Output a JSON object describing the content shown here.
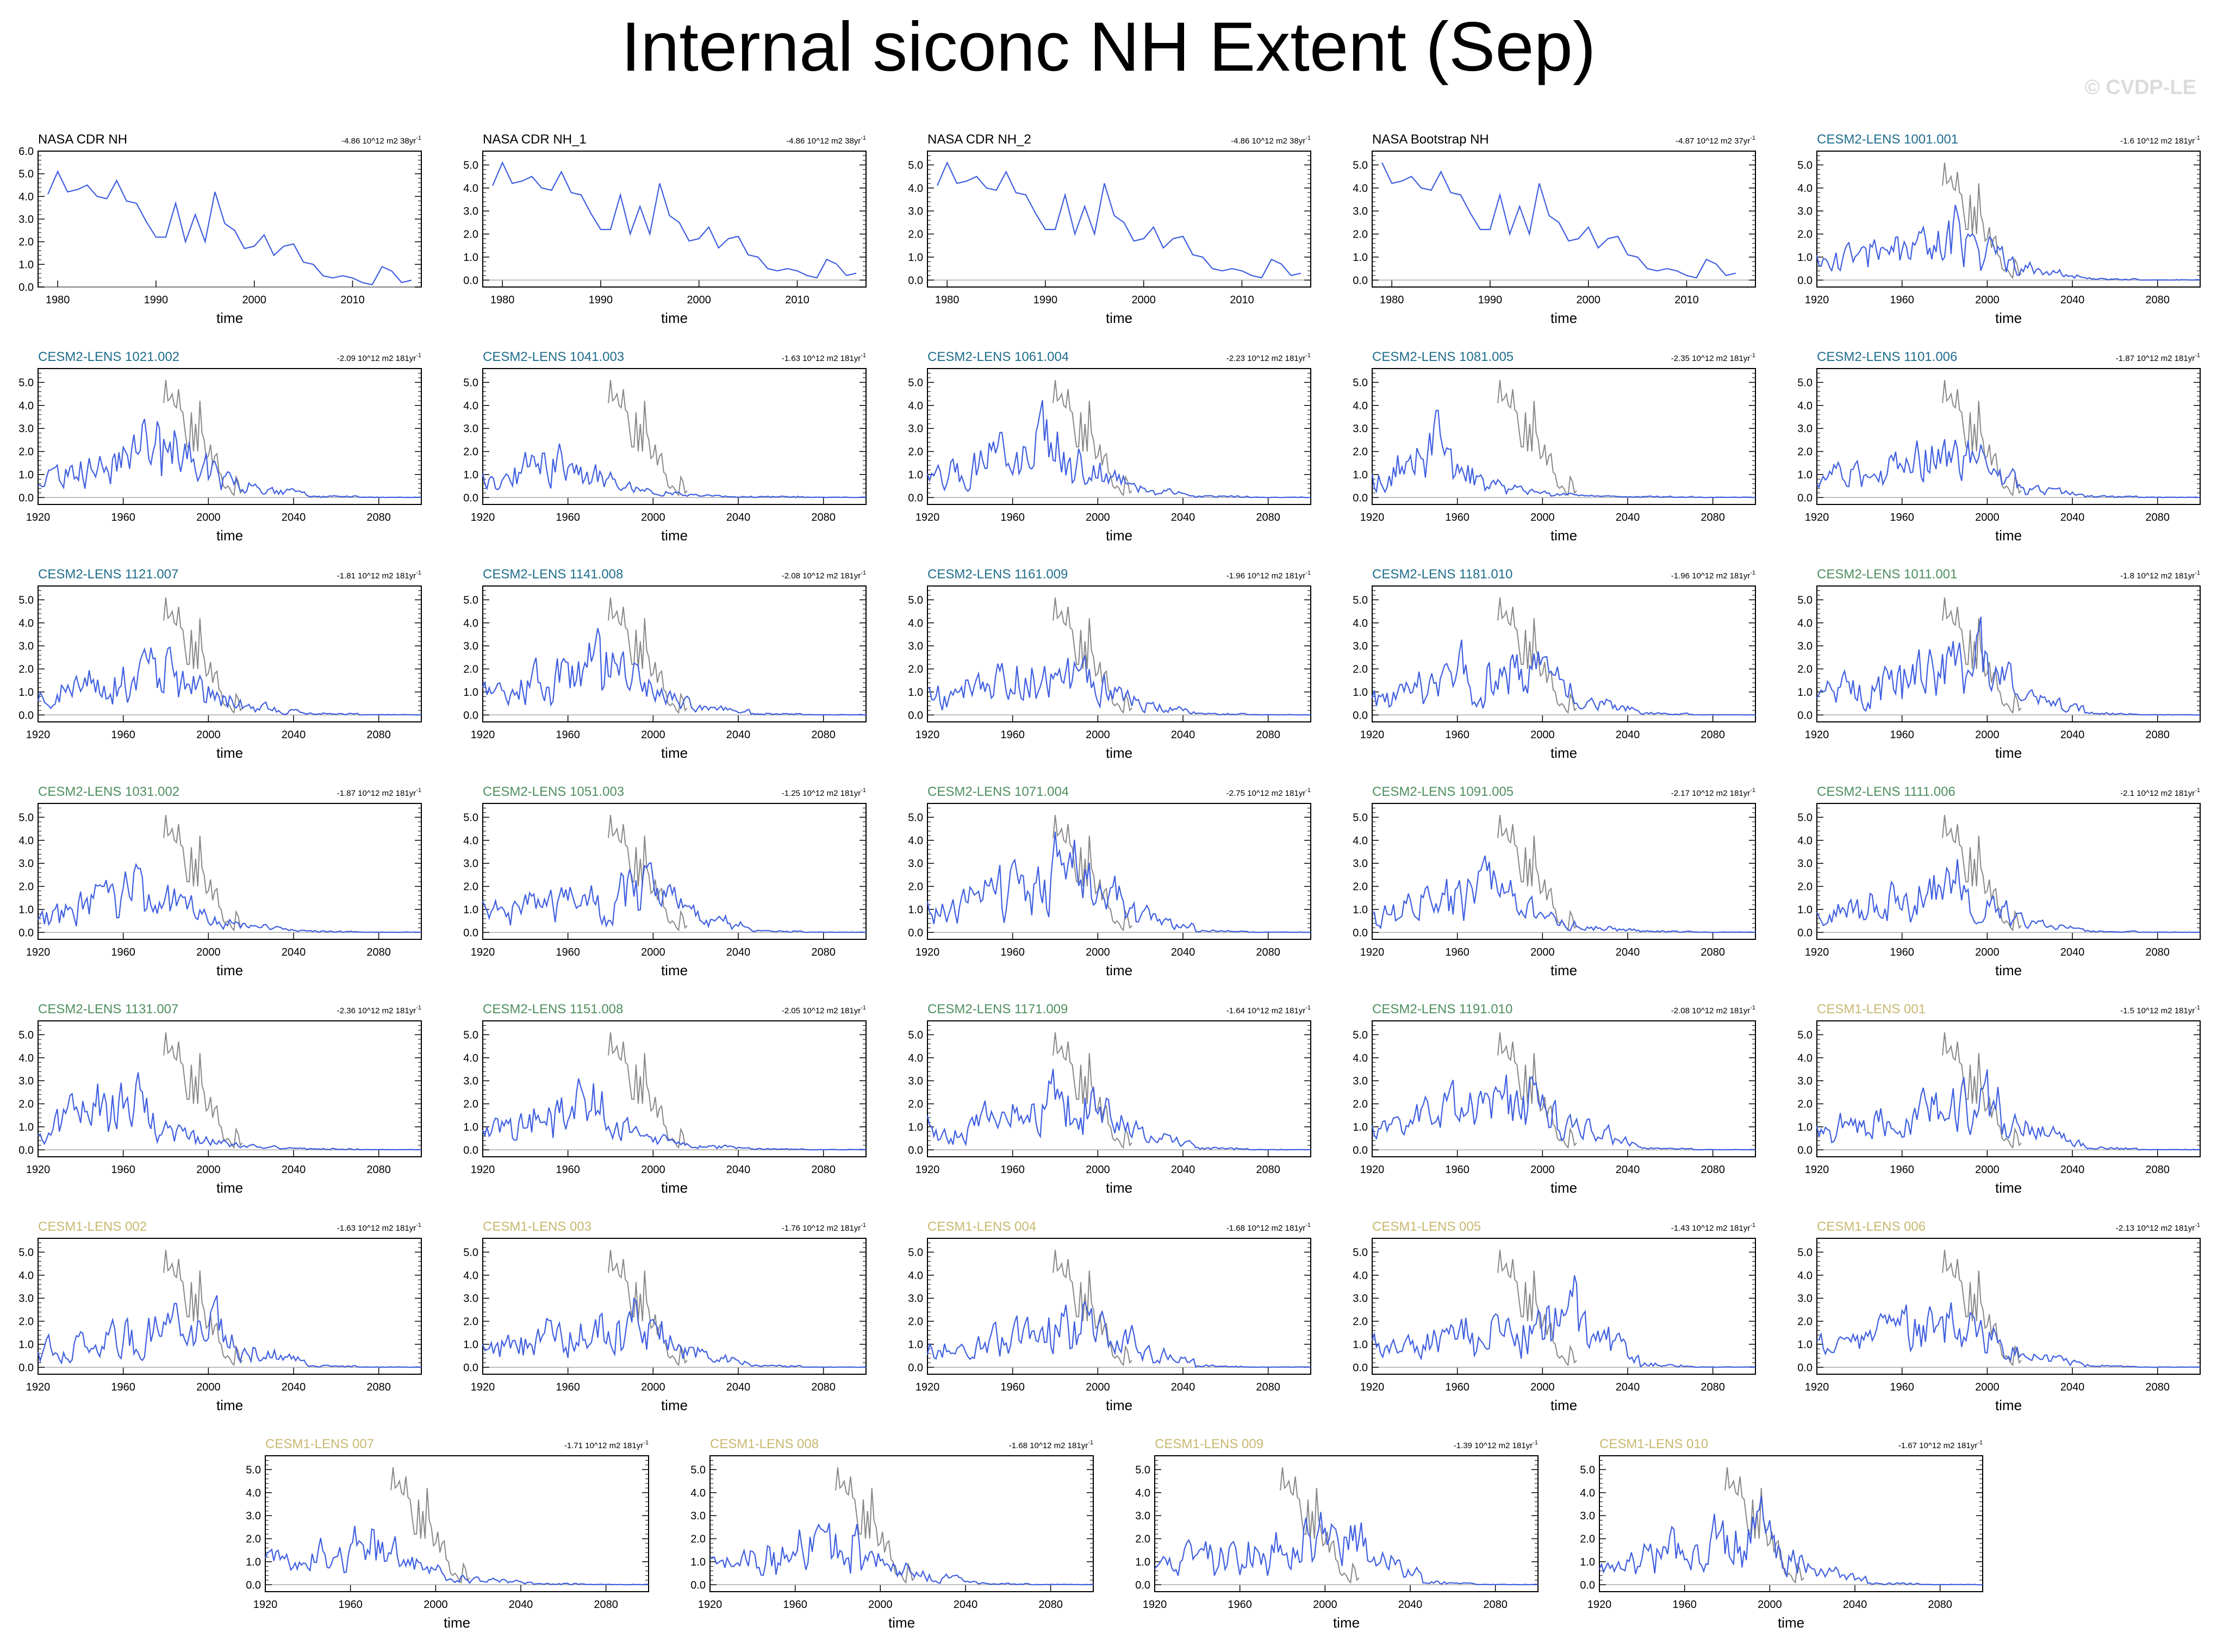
{
  "title": "Internal siconc NH Extent (Sep)",
  "watermark": "© CVDP-LE",
  "colors": {
    "series_line": "#3f5fe0",
    "obs_overlay_line": "#888888",
    "zero_line": "#aaaaaa",
    "frame": "#000000",
    "label_obs": "#000000",
    "label_cesm2_blue": "#1f6d8c",
    "label_cesm2_green": "#4f8f5f",
    "label_cesm1": "#c8b870"
  },
  "chart_data": [
    {
      "type": "line",
      "subtitle": "NASA CDR NH",
      "label_color": "#000000",
      "trend": "-4.86 10^12 m2 38yr",
      "trend_sup": "-1",
      "xlabel": "time",
      "xlim": [
        1978,
        2017
      ],
      "xticks": [
        1980,
        1990,
        2000,
        2010
      ],
      "ylim": [
        0,
        6
      ],
      "yticks": [
        "0.0",
        "1.0",
        "2.0",
        "3.0",
        "4.0",
        "5.0",
        "6.0"
      ],
      "overlay_obs": false,
      "x_start": 1979,
      "values": [
        4.1,
        5.1,
        4.2,
        4.3,
        4.5,
        4.0,
        3.9,
        4.7,
        3.8,
        3.7,
        2.9,
        2.2,
        2.2,
        3.7,
        2.0,
        3.2,
        2.0,
        4.2,
        2.8,
        2.5,
        1.7,
        1.8,
        2.3,
        1.4,
        1.8,
        1.9,
        1.1,
        1.0,
        0.5,
        0.4,
        0.5,
        0.4,
        0.2,
        0.1,
        0.9,
        0.7,
        0.2,
        0.3
      ]
    },
    {
      "type": "line",
      "subtitle": "NASA CDR NH_1",
      "label_color": "#000000",
      "trend": "-4.86 10^12 m2 38yr",
      "trend_sup": "-1",
      "xlabel": "time",
      "xlim": [
        1978,
        2017
      ],
      "xticks": [
        1980,
        1990,
        2000,
        2010
      ],
      "ylim": [
        -0.3,
        5.6
      ],
      "yticks": [
        "0.0",
        "1.0",
        "2.0",
        "3.0",
        "4.0",
        "5.0"
      ],
      "overlay_obs": false,
      "x_start": 1979,
      "values": [
        4.1,
        5.1,
        4.2,
        4.3,
        4.5,
        4.0,
        3.9,
        4.7,
        3.8,
        3.7,
        2.9,
        2.2,
        2.2,
        3.7,
        2.0,
        3.2,
        2.0,
        4.2,
        2.8,
        2.5,
        1.7,
        1.8,
        2.3,
        1.4,
        1.8,
        1.9,
        1.1,
        1.0,
        0.5,
        0.4,
        0.5,
        0.4,
        0.2,
        0.1,
        0.9,
        0.7,
        0.2,
        0.3
      ]
    },
    {
      "type": "line",
      "subtitle": "NASA CDR NH_2",
      "label_color": "#000000",
      "trend": "-4.86 10^12 m2 38yr",
      "trend_sup": "-1",
      "xlabel": "time",
      "xlim": [
        1978,
        2017
      ],
      "xticks": [
        1980,
        1990,
        2000,
        2010
      ],
      "ylim": [
        -0.3,
        5.6
      ],
      "yticks": [
        "0.0",
        "1.0",
        "2.0",
        "3.0",
        "4.0",
        "5.0"
      ],
      "overlay_obs": false,
      "x_start": 1979,
      "values": [
        4.1,
        5.1,
        4.2,
        4.3,
        4.5,
        4.0,
        3.9,
        4.7,
        3.8,
        3.7,
        2.9,
        2.2,
        2.2,
        3.7,
        2.0,
        3.2,
        2.0,
        4.2,
        2.8,
        2.5,
        1.7,
        1.8,
        2.3,
        1.4,
        1.8,
        1.9,
        1.1,
        1.0,
        0.5,
        0.4,
        0.5,
        0.4,
        0.2,
        0.1,
        0.9,
        0.7,
        0.2,
        0.3
      ]
    },
    {
      "type": "line",
      "subtitle": "NASA Bootstrap NH",
      "label_color": "#000000",
      "trend": "-4.87 10^12 m2 37yr",
      "trend_sup": "-1",
      "xlabel": "time",
      "xlim": [
        1978,
        2017
      ],
      "xticks": [
        1980,
        1990,
        2000,
        2010
      ],
      "ylim": [
        -0.3,
        5.6
      ],
      "yticks": [
        "0.0",
        "1.0",
        "2.0",
        "3.0",
        "4.0",
        "5.0"
      ],
      "overlay_obs": false,
      "x_start": 1979,
      "values": [
        5.1,
        4.2,
        4.3,
        4.5,
        4.0,
        3.9,
        4.7,
        3.8,
        3.7,
        2.9,
        2.2,
        2.2,
        3.7,
        2.0,
        3.2,
        2.0,
        4.2,
        2.8,
        2.5,
        1.7,
        1.8,
        2.3,
        1.4,
        1.8,
        1.9,
        1.1,
        1.0,
        0.5,
        0.4,
        0.5,
        0.4,
        0.2,
        0.1,
        0.9,
        0.7,
        0.2,
        0.3
      ]
    },
    {
      "type": "line",
      "subtitle": "CESM2-LENS 1001.001",
      "label_color": "#1f6d8c",
      "trend": "-1.6 10^12 m2 181yr",
      "trend_sup": "-1",
      "seed": 11,
      "peak": 1990,
      "amp": 2.6
    },
    {
      "type": "line",
      "subtitle": "CESM2-LENS 1021.002",
      "label_color": "#1f6d8c",
      "trend": "-2.09 10^12 m2 181yr",
      "trend_sup": "-1",
      "seed": 12,
      "peak": 1985,
      "amp": 3.0
    },
    {
      "type": "line",
      "subtitle": "CESM2-LENS 1041.003",
      "label_color": "#1f6d8c",
      "trend": "-1.63 10^12 m2 181yr",
      "trend_sup": "-1",
      "seed": 13,
      "peak": 1960,
      "amp": 2.0
    },
    {
      "type": "line",
      "subtitle": "CESM2-LENS 1061.004",
      "label_color": "#1f6d8c",
      "trend": "-2.23 10^12 m2 181yr",
      "trend_sup": "-1",
      "seed": 14,
      "peak": 1980,
      "amp": 3.2
    },
    {
      "type": "line",
      "subtitle": "CESM2-LENS 1081.005",
      "label_color": "#1f6d8c",
      "trend": "-2.35 10^12 m2 181yr",
      "trend_sup": "-1",
      "seed": 15,
      "peak": 1950,
      "amp": 2.6
    },
    {
      "type": "line",
      "subtitle": "CESM2-LENS 1101.006",
      "label_color": "#1f6d8c",
      "trend": "-1.87 10^12 m2 181yr",
      "trend_sup": "-1",
      "seed": 16,
      "peak": 1985,
      "amp": 2.6
    },
    {
      "type": "line",
      "subtitle": "CESM2-LENS 1121.007",
      "label_color": "#1f6d8c",
      "trend": "-1.81 10^12 m2 181yr",
      "trend_sup": "-1",
      "seed": 17,
      "peak": 1985,
      "amp": 2.6
    },
    {
      "type": "line",
      "subtitle": "CESM2-LENS 1141.008",
      "label_color": "#1f6d8c",
      "trend": "-2.08 10^12 m2 181yr",
      "trend_sup": "-1",
      "seed": 18,
      "peak": 1980,
      "amp": 3.0
    },
    {
      "type": "line",
      "subtitle": "CESM2-LENS 1161.009",
      "label_color": "#1f6d8c",
      "trend": "-1.96 10^12 m2 181yr",
      "trend_sup": "-1",
      "seed": 19,
      "peak": 1990,
      "amp": 2.6
    },
    {
      "type": "line",
      "subtitle": "CESM2-LENS 1181.010",
      "label_color": "#1f6d8c",
      "trend": "-1.96 10^12 m2 181yr",
      "trend_sup": "-1",
      "seed": 20,
      "peak": 1995,
      "amp": 2.6
    },
    {
      "type": "line",
      "subtitle": "CESM2-LENS 1011.001",
      "label_color": "#4f8f5f",
      "trend": "-1.8 10^12 m2 181yr",
      "trend_sup": "-1",
      "seed": 21,
      "peak": 1995,
      "amp": 3.0
    },
    {
      "type": "line",
      "subtitle": "CESM2-LENS 1031.002",
      "label_color": "#4f8f5f",
      "trend": "-1.87 10^12 m2 181yr",
      "trend_sup": "-1",
      "seed": 22,
      "peak": 1975,
      "amp": 2.5
    },
    {
      "type": "line",
      "subtitle": "CESM2-LENS 1051.003",
      "label_color": "#4f8f5f",
      "trend": "-1.25 10^12 m2 181yr",
      "trend_sup": "-1",
      "seed": 23,
      "peak": 2000,
      "amp": 2.6
    },
    {
      "type": "line",
      "subtitle": "CESM2-LENS 1071.004",
      "label_color": "#4f8f5f",
      "trend": "-2.75 10^12 m2 181yr",
      "trend_sup": "-1",
      "seed": 24,
      "peak": 1990,
      "amp": 3.4
    },
    {
      "type": "line",
      "subtitle": "CESM2-LENS 1091.005",
      "label_color": "#4f8f5f",
      "trend": "-2.17 10^12 m2 181yr",
      "trend_sup": "-1",
      "seed": 25,
      "peak": 1975,
      "amp": 2.6
    },
    {
      "type": "line",
      "subtitle": "CESM2-LENS 1111.006",
      "label_color": "#4f8f5f",
      "trend": "-2.1 10^12 m2 181yr",
      "trend_sup": "-1",
      "seed": 26,
      "peak": 1985,
      "amp": 2.8
    },
    {
      "type": "line",
      "subtitle": "CESM2-LENS 1131.007",
      "label_color": "#4f8f5f",
      "trend": "-2.36 10^12 m2 181yr",
      "trend_sup": "-1",
      "seed": 27,
      "peak": 1960,
      "amp": 2.8
    },
    {
      "type": "line",
      "subtitle": "CESM2-LENS 1151.008",
      "label_color": "#4f8f5f",
      "trend": "-2.05 10^12 m2 181yr",
      "trend_sup": "-1",
      "seed": 28,
      "peak": 1970,
      "amp": 2.6
    },
    {
      "type": "line",
      "subtitle": "CESM2-LENS 1171.009",
      "label_color": "#4f8f5f",
      "trend": "-1.64 10^12 m2 181yr",
      "trend_sup": "-1",
      "seed": 29,
      "peak": 1995,
      "amp": 2.6
    },
    {
      "type": "line",
      "subtitle": "CESM2-LENS 1191.010",
      "label_color": "#4f8f5f",
      "trend": "-2.08 10^12 m2 181yr",
      "trend_sup": "-1",
      "seed": 30,
      "peak": 1995,
      "amp": 3.2
    },
    {
      "type": "line",
      "subtitle": "CESM1-LENS 001",
      "label_color": "#c8b870",
      "trend": "-1.5 10^12 m2 181yr",
      "trend_sup": "-1",
      "seed": 31,
      "peak": 2000,
      "amp": 2.6
    },
    {
      "type": "line",
      "subtitle": "CESM1-LENS 002",
      "label_color": "#c8b870",
      "trend": "-1.63 10^12 m2 181yr",
      "trend_sup": "-1",
      "seed": 32,
      "peak": 2000,
      "amp": 2.4
    },
    {
      "type": "line",
      "subtitle": "CESM1-LENS 003",
      "label_color": "#c8b870",
      "trend": "-1.76 10^12 m2 181yr",
      "trend_sup": "-1",
      "seed": 33,
      "peak": 1995,
      "amp": 2.4
    },
    {
      "type": "line",
      "subtitle": "CESM1-LENS 004",
      "label_color": "#c8b870",
      "trend": "-1.68 10^12 m2 181yr",
      "trend_sup": "-1",
      "seed": 34,
      "peak": 2000,
      "amp": 2.4
    },
    {
      "type": "line",
      "subtitle": "CESM1-LENS 005",
      "label_color": "#c8b870",
      "trend": "-1.43 10^12 m2 181yr",
      "trend_sup": "-1",
      "seed": 35,
      "peak": 2015,
      "amp": 2.6
    },
    {
      "type": "line",
      "subtitle": "CESM1-LENS 006",
      "label_color": "#c8b870",
      "trend": "-2.13 10^12 m2 181yr",
      "trend_sup": "-1",
      "seed": 36,
      "peak": 1990,
      "amp": 2.6
    },
    {
      "type": "line",
      "subtitle": "CESM1-LENS 007",
      "label_color": "#c8b870",
      "trend": "-1.71 10^12 m2 181yr",
      "trend_sup": "-1",
      "seed": 37,
      "peak": 1975,
      "amp": 2.3
    },
    {
      "type": "line",
      "subtitle": "CESM1-LENS 008",
      "label_color": "#c8b870",
      "trend": "-1.68 10^12 m2 181yr",
      "trend_sup": "-1",
      "seed": 38,
      "peak": 1985,
      "amp": 2.5
    },
    {
      "type": "line",
      "subtitle": "CESM1-LENS 009",
      "label_color": "#c8b870",
      "trend": "-1.39 10^12 m2 181yr",
      "trend_sup": "-1",
      "seed": 39,
      "peak": 2010,
      "amp": 2.7
    },
    {
      "type": "line",
      "subtitle": "CESM1-LENS 010",
      "label_color": "#c8b870",
      "trend": "-1.67 10^12 m2 181yr",
      "trend_sup": "-1",
      "seed": 40,
      "peak": 1995,
      "amp": 2.6
    }
  ],
  "model_defaults": {
    "xlabel": "time",
    "xlim": [
      1920,
      2100
    ],
    "xticks": [
      1920,
      1960,
      2000,
      2040,
      2080
    ],
    "ylim": [
      -0.3,
      5.6
    ],
    "yticks": [
      "0.0",
      "1.0",
      "2.0",
      "3.0",
      "4.0",
      "5.0"
    ],
    "overlay_obs": true
  },
  "obs_overlay": {
    "x_start": 1979,
    "values": [
      4.1,
      5.1,
      4.2,
      4.3,
      4.5,
      4.0,
      3.9,
      4.7,
      3.8,
      3.7,
      2.9,
      2.2,
      2.2,
      3.7,
      2.0,
      3.2,
      2.0,
      4.2,
      2.8,
      2.5,
      1.7,
      1.8,
      2.3,
      1.4,
      1.8,
      1.9,
      1.1,
      1.0,
      0.5,
      0.4,
      0.5,
      0.4,
      0.2,
      0.1,
      0.9,
      0.7,
      0.2,
      0.3
    ]
  }
}
